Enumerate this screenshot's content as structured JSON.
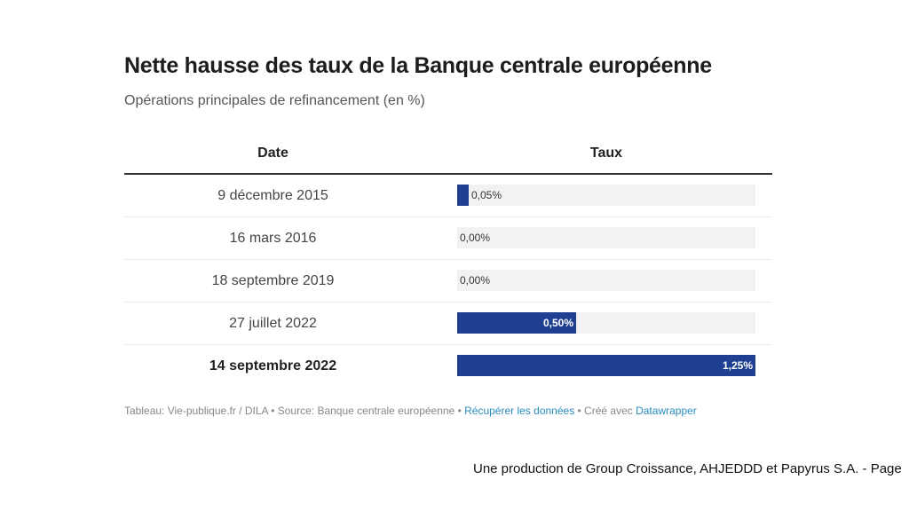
{
  "chart_data": {
    "type": "table",
    "title": "Nette hausse des taux de la Banque centrale européenne",
    "subtitle": "Opérations principales de refinancement (en %)",
    "columns": [
      "Date",
      "Taux"
    ],
    "max_value": 1.25,
    "bar_color": "#1f3f93",
    "track_color": "#f2f2f2",
    "rows": [
      {
        "date": "9 décembre 2015",
        "value": 0.05,
        "label": "0,05%",
        "bold": false
      },
      {
        "date": "16 mars 2016",
        "value": 0.0,
        "label": "0,00%",
        "bold": false
      },
      {
        "date": "18 septembre 2019",
        "value": 0.0,
        "label": "0,00%",
        "bold": false
      },
      {
        "date": "27 juillet 2022",
        "value": 0.5,
        "label": "0,50%",
        "bold": false
      },
      {
        "date": "14 septembre 2022",
        "value": 1.25,
        "label": "1,25%",
        "bold": true
      }
    ]
  },
  "footer": {
    "prefix": "Tableau: Vie-publique.fr / DILA • Source: Banque centrale européenne • ",
    "link_data": "Récupérer les données",
    "middle": " • Créé avec ",
    "link_tool": "Datawrapper"
  },
  "credit": "Une production de Group Croissance, AHJEDDD et Papyrus S.A. - Page"
}
